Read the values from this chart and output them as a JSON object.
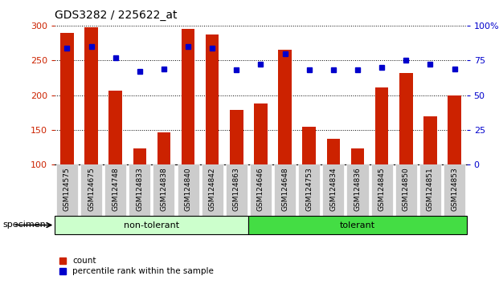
{
  "title": "GDS3282 / 225622_at",
  "categories": [
    "GSM124575",
    "GSM124675",
    "GSM124748",
    "GSM124833",
    "GSM124838",
    "GSM124840",
    "GSM124842",
    "GSM124863",
    "GSM124646",
    "GSM124648",
    "GSM124753",
    "GSM124834",
    "GSM124836",
    "GSM124845",
    "GSM124850",
    "GSM124851",
    "GSM124853"
  ],
  "counts": [
    290,
    298,
    206,
    123,
    146,
    295,
    287,
    179,
    188,
    265,
    154,
    137,
    124,
    211,
    232,
    169,
    200
  ],
  "percentile_ranks": [
    84,
    85,
    77,
    67,
    69,
    85,
    84,
    68,
    72,
    80,
    68,
    68,
    68,
    70,
    75,
    72,
    69
  ],
  "non_tolerant_count": 8,
  "tolerant_count": 9,
  "ylim_left": [
    100,
    300
  ],
  "ylim_right": [
    0,
    100
  ],
  "yticks_left": [
    100,
    150,
    200,
    250,
    300
  ],
  "yticks_right": [
    0,
    25,
    50,
    75,
    100
  ],
  "bar_color": "#cc2200",
  "dot_color": "#0000cc",
  "non_tolerant_color": "#ccffcc",
  "tolerant_color": "#44dd44",
  "bar_bottom": 100,
  "bg_color": "#ffffff",
  "tick_bg_color": "#cccccc",
  "specimen_label": "specimen",
  "non_tolerant_label": "non-tolerant",
  "tolerant_label": "tolerant",
  "legend_count": "count",
  "legend_pct": "percentile rank within the sample"
}
